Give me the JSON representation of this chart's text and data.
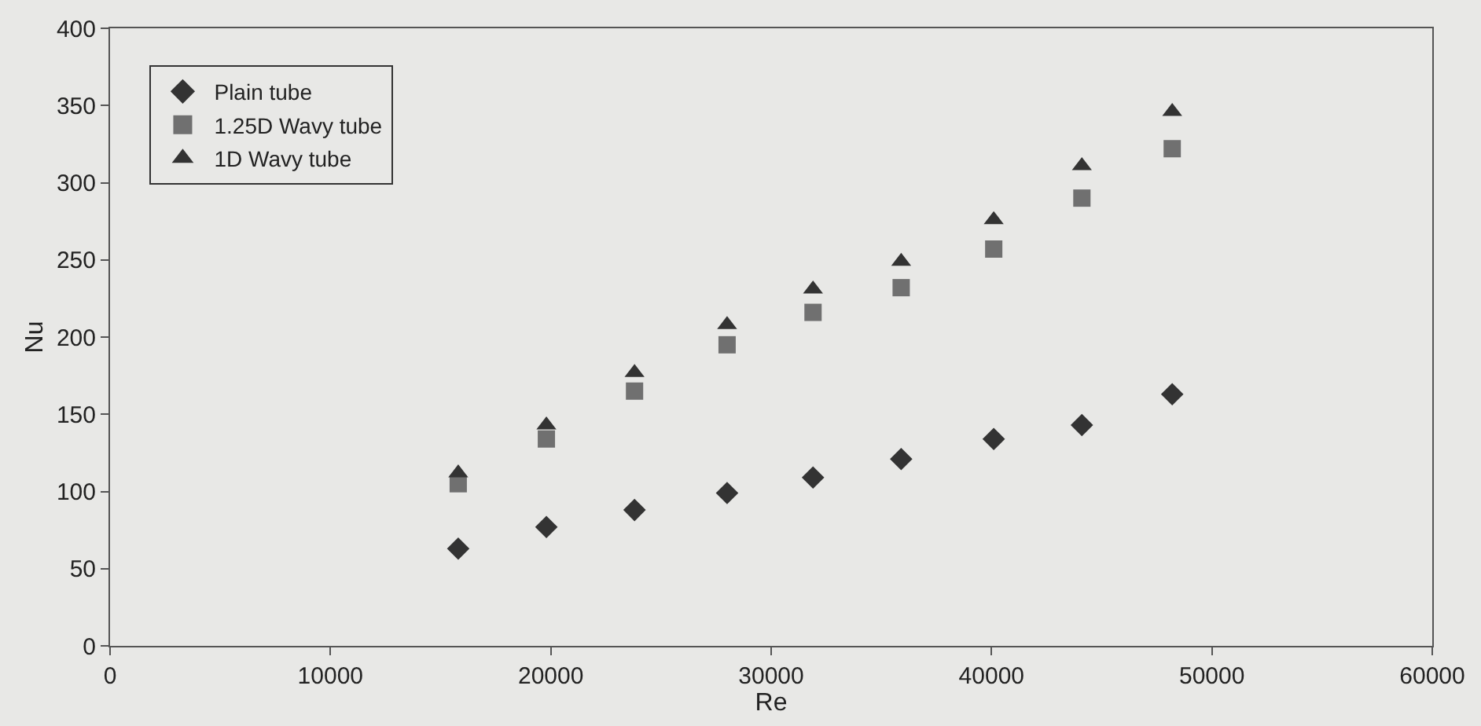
{
  "chart_data": {
    "type": "scatter",
    "xlabel": "Re",
    "ylabel": "Nu",
    "x": [
      15800,
      19800,
      23800,
      28000,
      31900,
      35900,
      40100,
      44100,
      48200
    ],
    "xlim": [
      0,
      60000
    ],
    "xticks": [
      0,
      10000,
      20000,
      30000,
      40000,
      50000,
      60000
    ],
    "ylim": [
      0,
      400
    ],
    "yticks": [
      0,
      50,
      100,
      150,
      200,
      250,
      300,
      350,
      400
    ],
    "grid": false,
    "legend": "top left",
    "series": [
      {
        "name": "Plain tube",
        "color": "#333333",
        "marker": "diamond",
        "values": [
          63,
          77,
          88,
          99,
          109,
          121,
          134,
          143,
          163
        ]
      },
      {
        "name": "1.25D Wavy tube",
        "color": "#707070",
        "marker": "square",
        "values": [
          105,
          134,
          165,
          195,
          216,
          232,
          257,
          290,
          322
        ]
      },
      {
        "name": "1D Wavy tube",
        "color": "#333333",
        "marker": "triangle",
        "values": [
          112,
          143,
          177,
          208,
          231,
          249,
          276,
          311,
          346
        ]
      }
    ]
  }
}
